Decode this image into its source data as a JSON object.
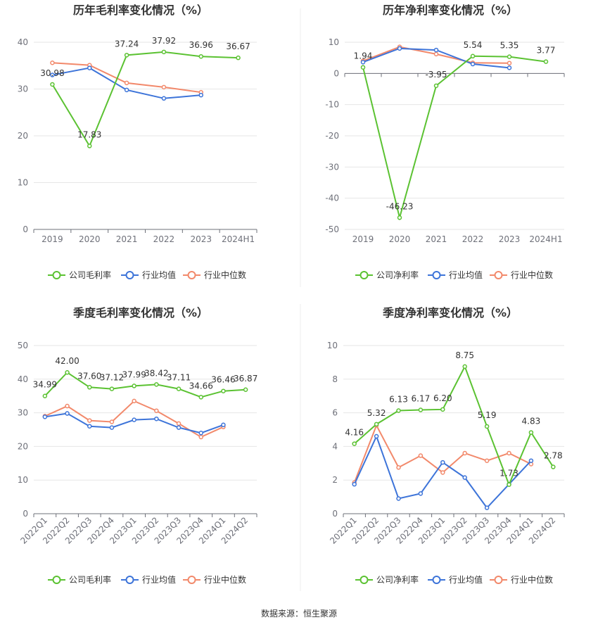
{
  "colors": {
    "company": "#5bc232",
    "industry_avg": "#3d74d9",
    "industry_median": "#f2896b"
  },
  "source": "数据来源：恒生聚源",
  "chart_data": [
    {
      "type": "line",
      "title": "历年毛利率变化情况（%）",
      "categories": [
        "2019",
        "2020",
        "2021",
        "2022",
        "2023",
        "2024H1"
      ],
      "ylim": [
        0,
        40
      ],
      "yticks": [
        0,
        10,
        20,
        30,
        40
      ],
      "grid": true,
      "legend": "bottom",
      "series": [
        {
          "name": "公司毛利率",
          "values": [
            30.98,
            17.83,
            37.24,
            37.92,
            36.96,
            36.67
          ],
          "labels": [
            "30.98",
            "17.83",
            "37.24",
            "37.92",
            "36.96",
            "36.67"
          ]
        },
        {
          "name": "行业均值",
          "values": [
            33.0,
            34.5,
            29.8,
            28.0,
            28.7,
            null
          ]
        },
        {
          "name": "行业中位数",
          "values": [
            35.6,
            35.1,
            31.3,
            30.4,
            29.3,
            null
          ]
        }
      ]
    },
    {
      "type": "line",
      "title": "历年净利率变化情况（%）",
      "categories": [
        "2019",
        "2020",
        "2021",
        "2022",
        "2023",
        "2024H1"
      ],
      "ylim": [
        -50,
        10
      ],
      "yticks": [
        -50,
        -40,
        -30,
        -20,
        -10,
        0,
        10
      ],
      "grid": true,
      "legend": "bottom",
      "series": [
        {
          "name": "公司净利率",
          "values": [
            1.94,
            -46.23,
            -3.95,
            5.54,
            5.35,
            3.77
          ],
          "labels": [
            "1.94",
            "-46.23",
            "-3.95",
            "5.54",
            "5.35",
            "3.77"
          ]
        },
        {
          "name": "行业均值",
          "values": [
            3.6,
            8.0,
            7.5,
            3.0,
            1.8,
            null
          ]
        },
        {
          "name": "行业中位数",
          "values": [
            4.0,
            8.5,
            6.2,
            3.4,
            3.3,
            null
          ]
        }
      ]
    },
    {
      "type": "line",
      "title": "季度毛利率变化情况（%）",
      "categories": [
        "2022Q1",
        "2022Q2",
        "2022Q3",
        "2022Q4",
        "2023Q1",
        "2023Q2",
        "2023Q3",
        "2023Q4",
        "2024Q1",
        "2024Q2"
      ],
      "ylim": [
        0,
        50
      ],
      "yticks": [
        0,
        10,
        20,
        30,
        40,
        50
      ],
      "grid": true,
      "legend": "bottom",
      "series": [
        {
          "name": "公司毛利率",
          "values": [
            34.99,
            42.0,
            37.6,
            37.12,
            37.99,
            38.42,
            37.11,
            34.66,
            36.46,
            36.87
          ],
          "labels": [
            "34.99",
            "42.00",
            "37.60",
            "37.12",
            "37.99",
            "38.42",
            "37.11",
            "34.66",
            "36.46",
            "36.87"
          ]
        },
        {
          "name": "行业均值",
          "values": [
            28.8,
            29.8,
            26.0,
            25.6,
            27.9,
            28.2,
            25.6,
            24.0,
            26.4,
            null
          ]
        },
        {
          "name": "行业中位数",
          "values": [
            29.0,
            32.0,
            27.7,
            27.3,
            33.5,
            30.6,
            26.8,
            22.8,
            25.8,
            null
          ]
        }
      ]
    },
    {
      "type": "line",
      "title": "季度净利率变化情况（%）",
      "categories": [
        "2022Q1",
        "2022Q2",
        "2022Q3",
        "2022Q4",
        "2023Q1",
        "2023Q2",
        "2023Q3",
        "2023Q4",
        "2024Q1",
        "2024Q2"
      ],
      "ylim": [
        0,
        10
      ],
      "yticks": [
        0,
        2,
        4,
        6,
        8,
        10
      ],
      "grid": true,
      "legend": "bottom",
      "series": [
        {
          "name": "公司净利率",
          "values": [
            4.16,
            5.32,
            6.13,
            6.17,
            6.2,
            8.75,
            5.19,
            1.73,
            4.83,
            2.78
          ],
          "labels": [
            "4.16",
            "5.32",
            "6.13",
            "6.17",
            "6.20",
            "8.75",
            "5.19",
            "1.73",
            "4.83",
            "2.78"
          ]
        },
        {
          "name": "行业均值",
          "values": [
            1.75,
            4.6,
            0.9,
            1.2,
            3.05,
            2.15,
            0.35,
            1.75,
            3.15,
            null
          ]
        },
        {
          "name": "行业中位数",
          "values": [
            1.85,
            5.25,
            2.75,
            3.45,
            2.45,
            3.6,
            3.15,
            3.6,
            2.95,
            null
          ]
        }
      ]
    }
  ]
}
